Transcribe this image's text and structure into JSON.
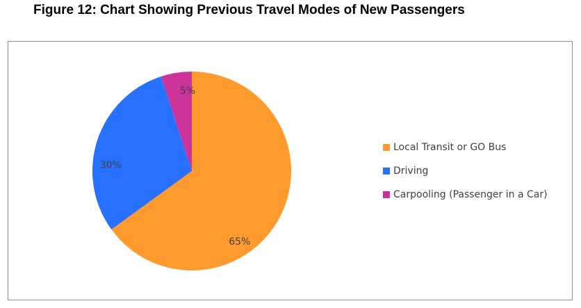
{
  "figure": {
    "title": "Figure 12: Chart Showing Previous Travel Modes of New Passengers"
  },
  "chart_data": {
    "type": "pie",
    "title": "Figure 12: Chart Showing Previous Travel Modes of New Passengers",
    "start": "12 o'clock, clockwise",
    "legend_position": "right",
    "slices": [
      {
        "label": "Local Transit or GO Bus",
        "value": 65,
        "display": "65%",
        "color": "#FF9A2E"
      },
      {
        "label": "Driving",
        "value": 30,
        "display": "30%",
        "color": "#2870FF"
      },
      {
        "label": "Carpooling (Passenger in a Car)",
        "value": 5,
        "display": "5%",
        "color": "#CC3399"
      }
    ]
  }
}
